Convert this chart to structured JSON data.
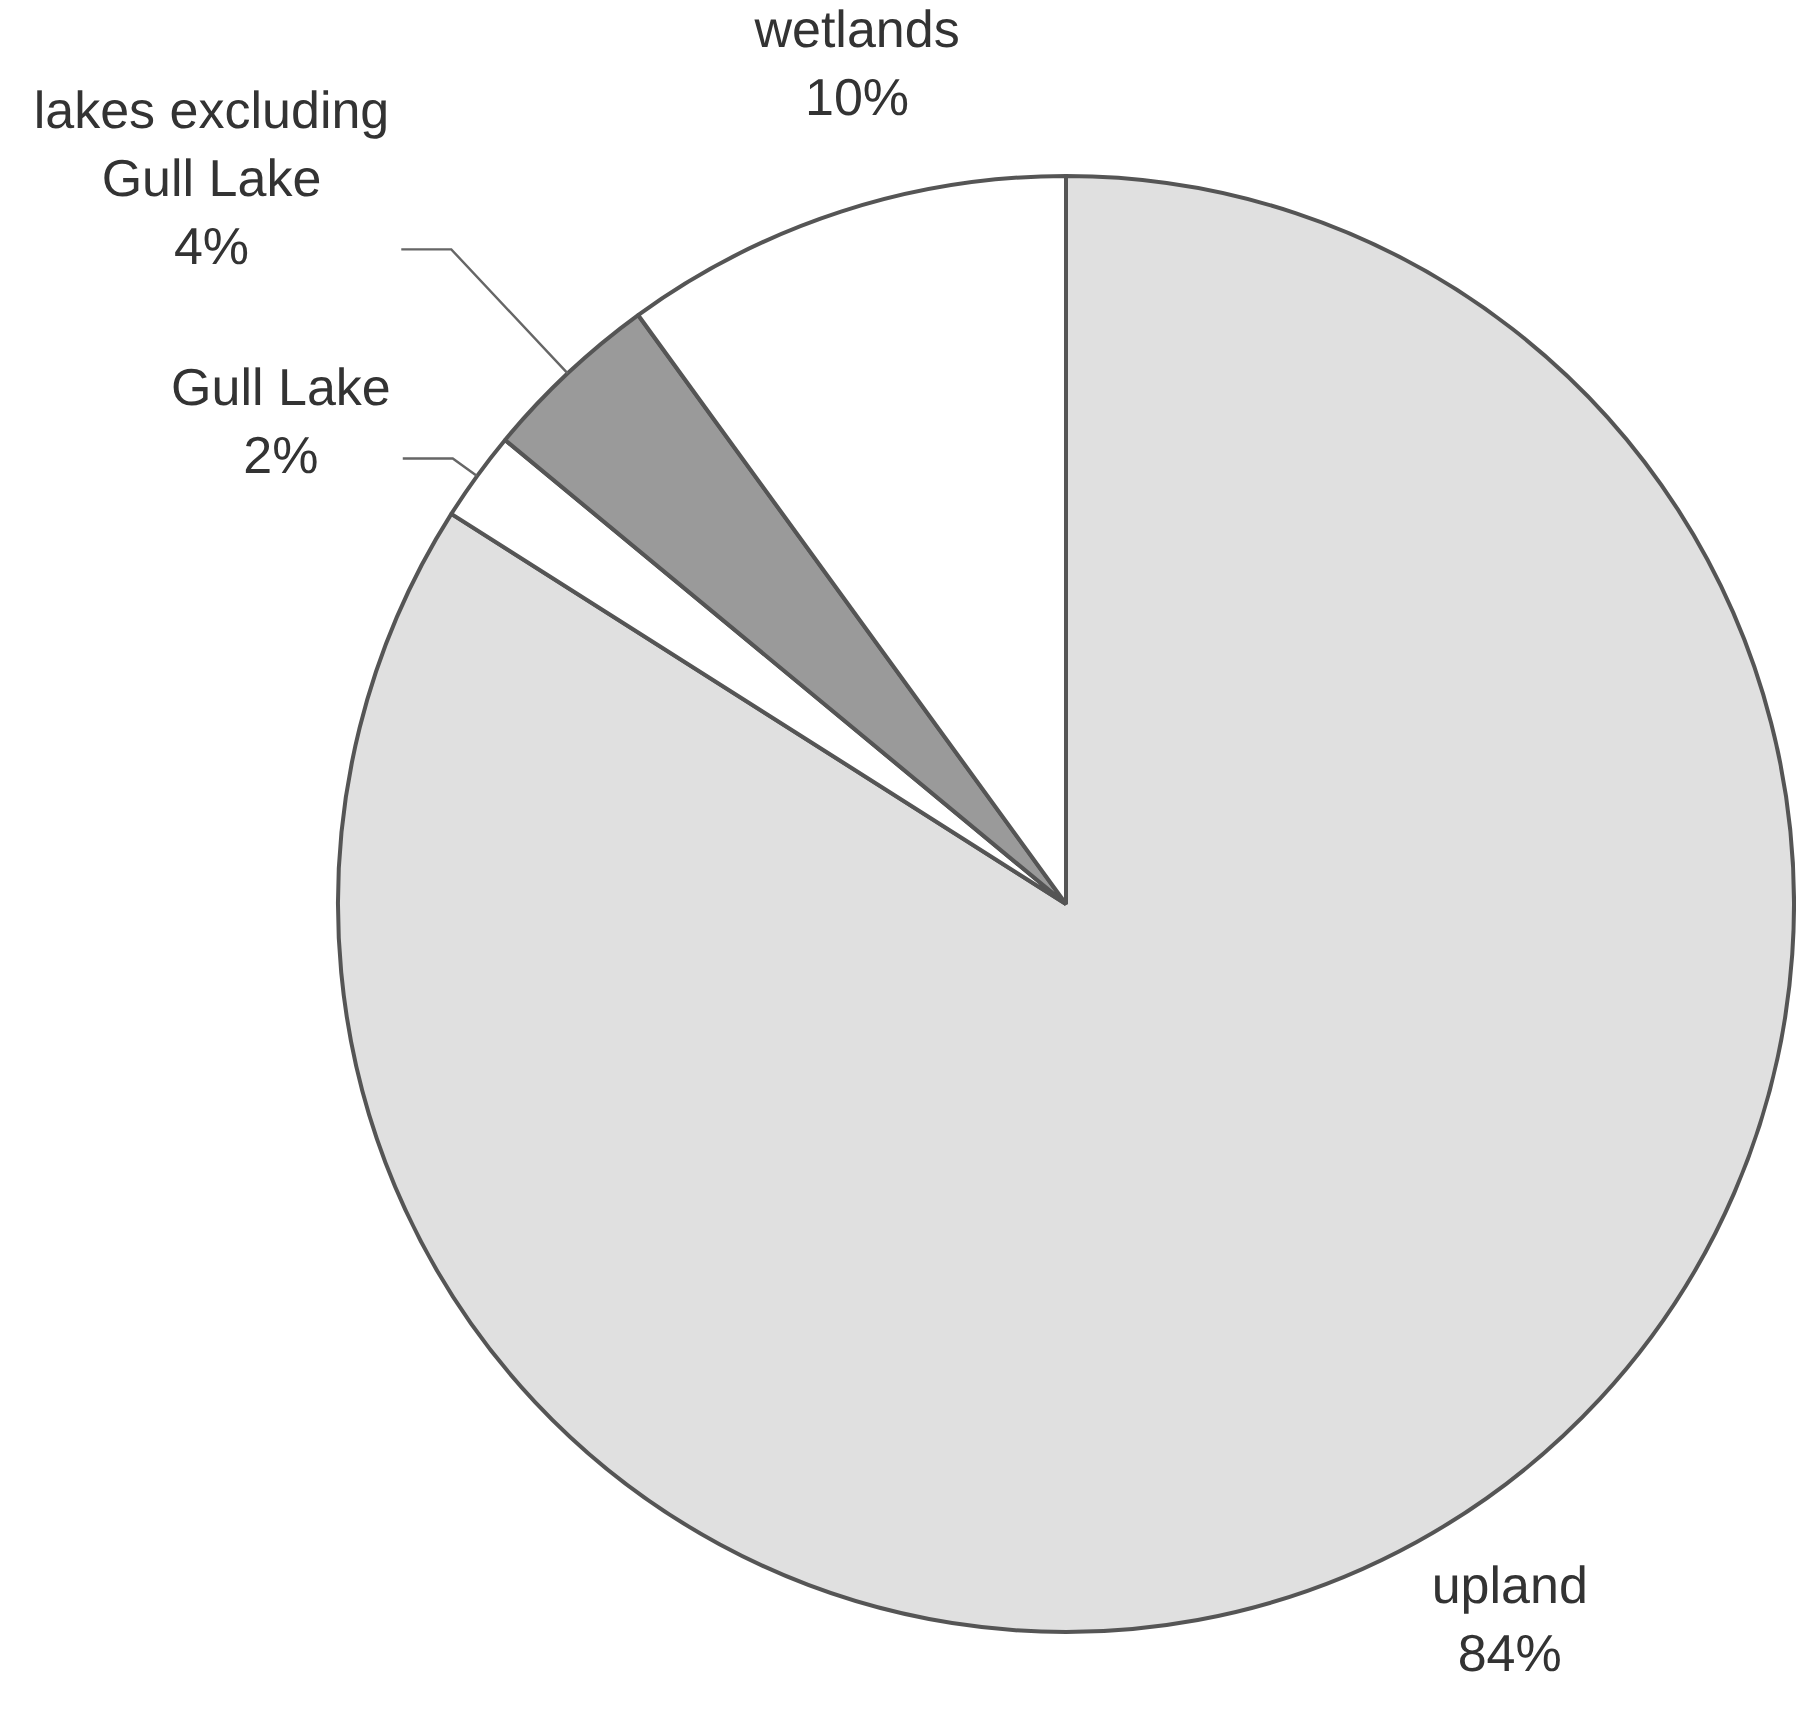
{
  "chart_data": {
    "type": "pie",
    "categories": [
      "upland",
      "Gull Lake",
      "lakes excluding Gull Lake",
      "wetlands"
    ],
    "values": [
      84,
      2,
      4,
      10
    ],
    "colors": [
      "#e0e0e0",
      "#ffffff",
      "#9a9a9a",
      "#ffffff"
    ],
    "value_labels": [
      "84%",
      "2%",
      "4%",
      "10%"
    ],
    "legend": false
  }
}
